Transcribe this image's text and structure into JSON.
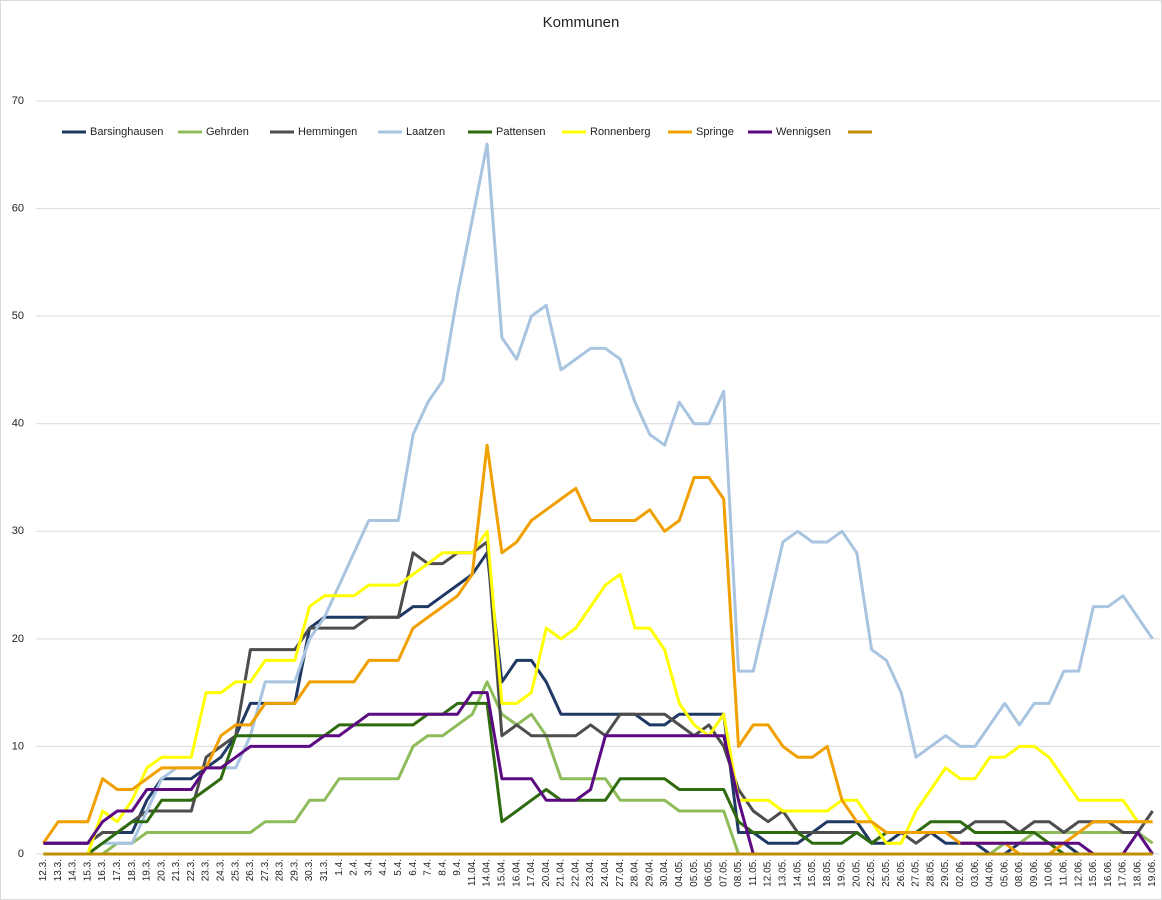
{
  "chart_data": {
    "type": "line",
    "title": "Kommunen",
    "categories": [
      "12.3.",
      "13.3.",
      "14.3.",
      "15.3.",
      "16.3.",
      "17.3.",
      "18.3.",
      "19.3.",
      "20.3.",
      "21.3.",
      "22.3.",
      "23.3.",
      "24.3.",
      "25.3.",
      "26.3.",
      "27.3.",
      "28.3.",
      "29.3.",
      "30.3.",
      "31.3.",
      "1.4.",
      "2.4.",
      "3.4.",
      "4.4.",
      "5.4.",
      "6.4.",
      "7.4.",
      "8.4.",
      "9.4.",
      "11.04.",
      "14.04.",
      "15.04.",
      "16.04.",
      "17.04.",
      "20.04.",
      "21.04.",
      "22.04.",
      "23.04.",
      "24.04.",
      "27.04.",
      "28.04.",
      "29.04.",
      "30.04.",
      "04.05.",
      "05.05.",
      "06.05.",
      "07.05.",
      "08.05.",
      "11.05.",
      "12.05.",
      "13.05.",
      "14.05.",
      "15.05.",
      "18.05.",
      "19.05.",
      "20.05.",
      "22.05.",
      "25.05.",
      "26.05.",
      "27.05.",
      "28.05.",
      "29.05.",
      "02.06.",
      "03.06.",
      "04.06.",
      "05.06.",
      "08.06.",
      "09.06.",
      "10.06.",
      "11.06.",
      "12.06.",
      "15.06.",
      "16.06.",
      "17.06.",
      "18.06.",
      "19.06."
    ],
    "ylim": [
      0,
      70
    ],
    "yticks": [
      0,
      10,
      20,
      30,
      40,
      50,
      60,
      70
    ],
    "grid": true,
    "legend": "top-left",
    "series": [
      {
        "name": "Barsinghausen",
        "color": "#1f3864",
        "values": [
          1,
          1,
          1,
          1,
          2,
          2,
          2,
          5,
          7,
          7,
          7,
          8,
          9,
          11,
          14,
          14,
          14,
          14,
          21,
          22,
          22,
          22,
          22,
          22,
          22,
          23,
          23,
          24,
          25,
          26,
          28,
          16,
          18,
          18,
          16,
          13,
          13,
          13,
          13,
          13,
          13,
          12,
          12,
          13,
          13,
          13,
          13,
          2,
          2,
          1,
          1,
          1,
          2,
          3,
          3,
          3,
          1,
          1,
          2,
          2,
          2,
          1,
          1,
          1,
          0,
          0,
          1,
          1,
          1,
          1,
          0,
          0,
          0,
          0,
          0,
          0
        ]
      },
      {
        "name": "Gehrden",
        "color": "#8fbc5a",
        "values": [
          null,
          null,
          null,
          0,
          0,
          1,
          1,
          2,
          2,
          2,
          2,
          2,
          2,
          2,
          2,
          3,
          3,
          3,
          5,
          5,
          7,
          7,
          7,
          7,
          7,
          10,
          11,
          11,
          12,
          13,
          16,
          13,
          12,
          13,
          11,
          7,
          7,
          7,
          7,
          5,
          5,
          5,
          5,
          4,
          4,
          4,
          4,
          0,
          null,
          null,
          null,
          null,
          null,
          null,
          null,
          null,
          null,
          null,
          null,
          null,
          null,
          null,
          null,
          0,
          0,
          1,
          1,
          2,
          2,
          2,
          2,
          2,
          2,
          2,
          2,
          1
        ]
      },
      {
        "name": "Hemmingen",
        "color": "#4d4d4d",
        "values": [
          1,
          1,
          1,
          1,
          2,
          2,
          3,
          4,
          4,
          4,
          4,
          9,
          10,
          11,
          19,
          19,
          19,
          19,
          21,
          21,
          21,
          21,
          22,
          22,
          22,
          28,
          27,
          27,
          28,
          28,
          29,
          11,
          12,
          11,
          11,
          11,
          11,
          12,
          11,
          13,
          13,
          13,
          13,
          12,
          11,
          12,
          10,
          6,
          4,
          3,
          4,
          2,
          2,
          2,
          2,
          2,
          1,
          2,
          2,
          1,
          2,
          2,
          2,
          3,
          3,
          3,
          2,
          3,
          3,
          2,
          3,
          3,
          3,
          2,
          2,
          4
        ]
      },
      {
        "name": "Laatzen",
        "color": "#a9c4e0",
        "values": [
          null,
          null,
          null,
          0,
          1,
          1,
          1,
          4,
          7,
          8,
          8,
          8,
          8,
          8,
          11,
          16,
          16,
          16,
          20,
          22,
          25,
          28,
          31,
          31,
          31,
          39,
          42,
          44,
          52,
          59,
          66,
          48,
          46,
          50,
          51,
          45,
          46,
          47,
          47,
          46,
          42,
          39,
          38,
          42,
          40,
          40,
          43,
          17,
          17,
          23,
          29,
          30,
          29,
          29,
          30,
          28,
          19,
          18,
          15,
          9,
          10,
          11,
          10,
          10,
          12,
          14,
          12,
          14,
          14,
          17,
          17,
          23,
          23,
          24,
          22,
          20
        ]
      },
      {
        "name": "Pattensen",
        "color": "#2e6b0f",
        "values": [
          null,
          null,
          null,
          0,
          1,
          2,
          3,
          3,
          5,
          5,
          5,
          6,
          7,
          11,
          11,
          11,
          11,
          11,
          11,
          11,
          12,
          12,
          12,
          12,
          12,
          12,
          13,
          13,
          14,
          14,
          14,
          3,
          4,
          5,
          6,
          5,
          5,
          5,
          5,
          7,
          7,
          7,
          7,
          6,
          6,
          6,
          6,
          3,
          2,
          2,
          2,
          2,
          1,
          1,
          1,
          2,
          1,
          2,
          2,
          2,
          3,
          3,
          3,
          2,
          2,
          2,
          2,
          2,
          1,
          0,
          0,
          0,
          0,
          0,
          0,
          0
        ]
      },
      {
        "name": "Ronnenberg",
        "color": "#ffff00",
        "values": [
          null,
          null,
          null,
          0,
          4,
          3,
          5,
          8,
          9,
          9,
          9,
          15,
          15,
          16,
          16,
          18,
          18,
          18,
          23,
          24,
          24,
          24,
          25,
          25,
          25,
          26,
          27,
          28,
          28,
          28,
          30,
          14,
          14,
          15,
          21,
          20,
          21,
          23,
          25,
          26,
          21,
          21,
          19,
          14,
          12,
          11,
          13,
          5,
          5,
          5,
          4,
          4,
          4,
          4,
          5,
          5,
          3,
          1,
          1,
          4,
          6,
          8,
          7,
          7,
          9,
          9,
          10,
          10,
          9,
          7,
          5,
          5,
          5,
          5,
          3,
          3
        ]
      },
      {
        "name": "Springe",
        "color": "#f0a000",
        "values": [
          1,
          3,
          3,
          3,
          7,
          6,
          6,
          7,
          8,
          8,
          8,
          8,
          11,
          12,
          12,
          14,
          14,
          14,
          16,
          16,
          16,
          16,
          18,
          18,
          18,
          21,
          22,
          23,
          24,
          26,
          38,
          28,
          29,
          31,
          32,
          33,
          34,
          31,
          31,
          31,
          31,
          32,
          30,
          31,
          35,
          35,
          33,
          10,
          12,
          12,
          10,
          9,
          9,
          10,
          5,
          3,
          3,
          2,
          2,
          2,
          2,
          2,
          1,
          1,
          1,
          1,
          0,
          0,
          0,
          1,
          2,
          3,
          3,
          3,
          3,
          3
        ]
      },
      {
        "name": "Wennigsen",
        "color": "#5b0a82",
        "values": [
          1,
          1,
          1,
          1,
          3,
          4,
          4,
          6,
          6,
          6,
          6,
          8,
          8,
          9,
          10,
          10,
          10,
          10,
          10,
          11,
          11,
          12,
          13,
          13,
          13,
          13,
          13,
          13,
          13,
          15,
          15,
          7,
          7,
          7,
          5,
          5,
          5,
          6,
          11,
          11,
          11,
          11,
          11,
          11,
          11,
          11,
          11,
          5,
          0,
          null,
          null,
          null,
          null,
          null,
          null,
          null,
          null,
          null,
          null,
          null,
          null,
          null,
          1,
          1,
          1,
          1,
          1,
          1,
          1,
          1,
          1,
          0,
          0,
          0,
          2,
          0
        ]
      },
      {
        "color": "#bf8f00",
        "values": [
          0,
          0,
          0,
          0,
          0,
          0,
          0,
          0,
          0,
          0,
          0,
          0,
          0,
          0,
          0,
          0,
          0,
          0,
          0,
          0,
          0,
          0,
          0,
          0,
          0,
          0,
          0,
          0,
          0,
          0,
          0,
          0,
          0,
          0,
          0,
          0,
          0,
          0,
          0,
          0,
          0,
          0,
          0,
          0,
          0,
          0,
          0,
          0,
          0,
          0,
          0,
          0,
          0,
          0,
          0,
          0,
          0,
          0,
          0,
          0,
          0,
          0,
          0,
          0,
          0,
          0,
          0,
          0,
          0,
          0,
          0,
          0,
          0,
          0,
          0,
          0
        ]
      }
    ]
  }
}
